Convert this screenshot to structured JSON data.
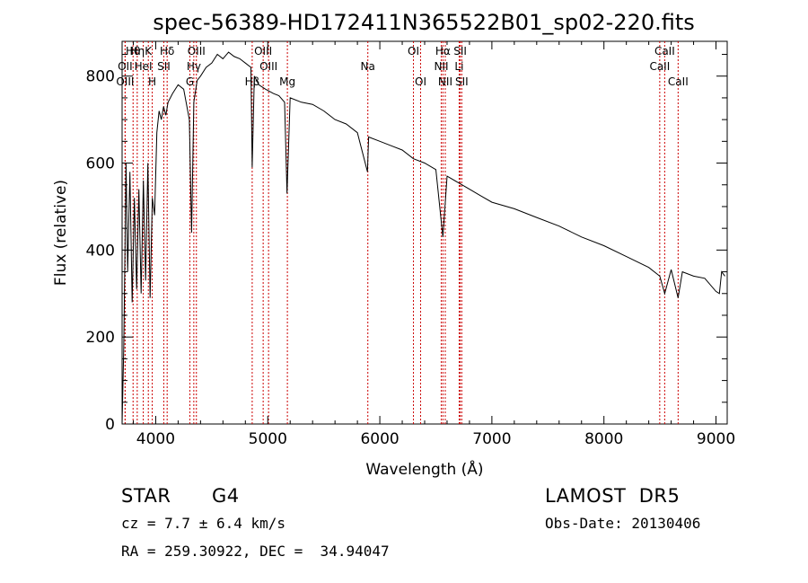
{
  "chart_data": {
    "type": "line",
    "title": "spec-56389-HD172411N365522B01_sp02-220.fits",
    "xlabel": "Wavelength (Å)",
    "ylabel": "Flux (relative)",
    "xlim": [
      3700,
      9100
    ],
    "ylim": [
      0,
      880
    ],
    "x_ticks": [
      4000,
      5000,
      6000,
      7000,
      8000,
      9000
    ],
    "y_ticks": [
      0,
      200,
      400,
      600,
      800
    ],
    "series": [
      {
        "x": [
          3700,
          3715,
          3735,
          3750,
          3770,
          3790,
          3810,
          3830,
          3850,
          3870,
          3890,
          3910,
          3930,
          3950,
          3970,
          3990,
          4010,
          4030,
          4050,
          4070,
          4090,
          4110,
          4150,
          4200,
          4250,
          4300,
          4320,
          4340,
          4370,
          4400,
          4450,
          4500,
          4550,
          4600,
          4650,
          4700,
          4750,
          4800,
          4850,
          4861,
          4880,
          4920,
          4980,
          5050,
          5100,
          5150,
          5172,
          5200,
          5300,
          5400,
          5500,
          5600,
          5700,
          5800,
          5890,
          5900,
          6000,
          6100,
          6200,
          6300,
          6400,
          6500,
          6563,
          6600,
          6700,
          6800,
          6900,
          7000,
          7200,
          7400,
          7600,
          7800,
          8000,
          8200,
          8400,
          8498,
          8542,
          8600,
          8662,
          8700,
          8800,
          8900,
          9000,
          9030,
          9050,
          9080
        ],
        "y": [
          0,
          180,
          600,
          350,
          580,
          280,
          520,
          310,
          540,
          300,
          560,
          330,
          600,
          290,
          520,
          480,
          670,
          720,
          700,
          730,
          710,
          740,
          760,
          780,
          770,
          700,
          440,
          740,
          790,
          800,
          820,
          830,
          850,
          840,
          855,
          845,
          840,
          830,
          820,
          590,
          800,
          780,
          770,
          760,
          755,
          740,
          530,
          750,
          740,
          735,
          720,
          700,
          690,
          670,
          580,
          660,
          650,
          640,
          630,
          610,
          600,
          585,
          430,
          570,
          555,
          540,
          525,
          510,
          495,
          475,
          455,
          430,
          410,
          385,
          360,
          340,
          300,
          355,
          290,
          350,
          340,
          335,
          305,
          300,
          350,
          340
        ]
      }
    ],
    "lines": [
      {
        "label": "Hθ",
        "x": 3798
      },
      {
        "label": "OII",
        "x": 3727
      },
      {
        "label": "OIII",
        "x": 3727
      },
      {
        "label": "Hη",
        "x": 3835
      },
      {
        "label": "HeI",
        "x": 3889
      },
      {
        "label": "K",
        "x": 3934
      },
      {
        "label": "H",
        "x": 3969
      },
      {
        "label": "SII",
        "x": 4072
      },
      {
        "label": "Hδ",
        "x": 4102
      },
      {
        "label": "OIII",
        "x": 4363
      },
      {
        "label": "Hγ",
        "x": 4340
      },
      {
        "label": "G",
        "x": 4305
      },
      {
        "label": "Hβ",
        "x": 4861
      },
      {
        "label": "OIII",
        "x": 4959
      },
      {
        "label": "OIII",
        "x": 5007
      },
      {
        "label": "Mg",
        "x": 5175
      },
      {
        "label": "Na",
        "x": 5893
      },
      {
        "label": "OI",
        "x": 6300
      },
      {
        "label": "OI",
        "x": 6364
      },
      {
        "label": "Hα",
        "x": 6563
      },
      {
        "label": "NII",
        "x": 6548
      },
      {
        "label": "NII",
        "x": 6584
      },
      {
        "label": "SII",
        "x": 6717
      },
      {
        "label": "Li",
        "x": 6708
      },
      {
        "label": "SII",
        "x": 6731
      },
      {
        "label": "CaII",
        "x": 8542
      },
      {
        "label": "CaII",
        "x": 8498
      },
      {
        "label": "CaII",
        "x": 8662
      }
    ],
    "line_label_rows": [
      0,
      1,
      2,
      0,
      1,
      0,
      2,
      1,
      0,
      0,
      1,
      2,
      2,
      0,
      1,
      2,
      1,
      0,
      2,
      0,
      1,
      2,
      0,
      1,
      2,
      0,
      1,
      2
    ],
    "grid": false,
    "colors": {
      "spectrum": "#000000",
      "lines": "#cc0000"
    }
  },
  "info": {
    "class": "STAR",
    "subclass": "G4",
    "cz": "cz = 7.7 ± 6.4 km/s",
    "coords": "RA = 259.30922, DEC =  34.94047",
    "survey": "LAMOST  DR5",
    "obs_date": "Obs-Date: 20130406"
  }
}
